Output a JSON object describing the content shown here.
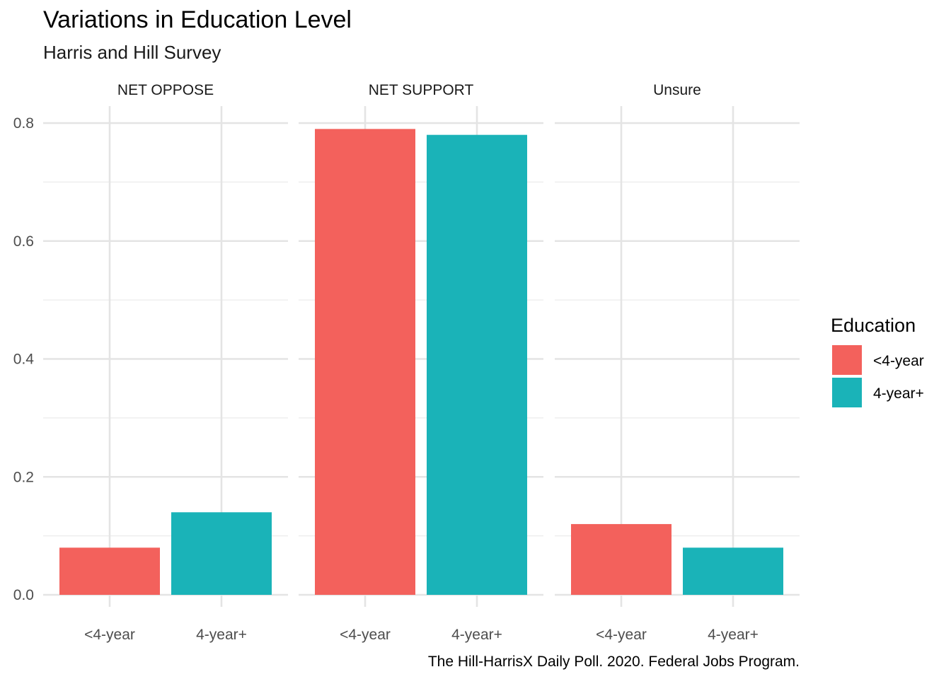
{
  "chart_data": {
    "type": "bar",
    "title": "Variations in Education Level",
    "subtitle": "Harris and Hill Survey",
    "caption": "The Hill-HarrisX Daily Poll. 2020. Federal Jobs Program.",
    "xlabel": "",
    "ylabel": "",
    "ylim": [
      0,
      0.8
    ],
    "yticks": [
      "0.0",
      "0.2",
      "0.4",
      "0.6",
      "0.8"
    ],
    "grid": true,
    "categories": [
      "<4-year",
      "4-year+"
    ],
    "facets": [
      {
        "label": "NET OPPOSE",
        "values": [
          0.08,
          0.14
        ]
      },
      {
        "label": "NET SUPPORT",
        "values": [
          0.79,
          0.78
        ]
      },
      {
        "label": "Unsure",
        "values": [
          0.12,
          0.08
        ]
      }
    ],
    "legend": {
      "title": "Education",
      "placement": "right",
      "entries": [
        {
          "label": "<4-year",
          "color": "#F3615C"
        },
        {
          "label": "4-year+",
          "color": "#1AB3B8"
        }
      ]
    }
  }
}
